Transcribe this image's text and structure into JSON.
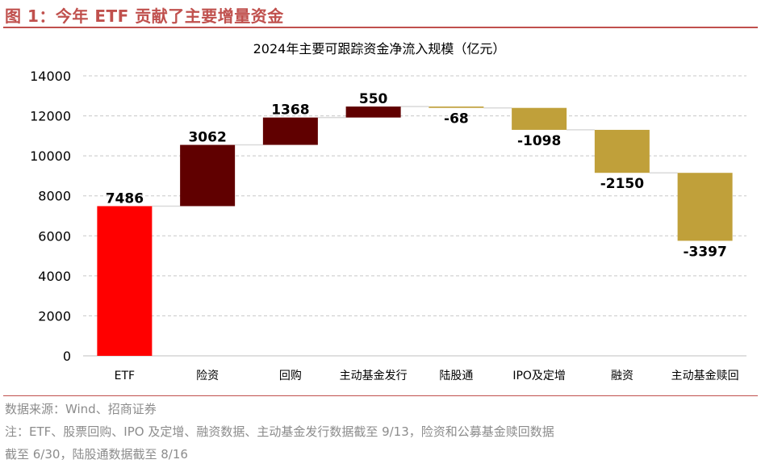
{
  "figure": {
    "title": "图 1：今年 ETF 贡献了主要增量资金",
    "source": "数据来源：Wind、招商证券",
    "note_line1": "注：ETF、股票回购、IPO 及定增、融资数据、主动基金发行数据截至 9/13，险资和公募基金赎回数据",
    "note_line2": "截至 6/30，陆股通数据截至 8/16"
  },
  "colors": {
    "accent": "#c0504d",
    "etf": "#ff0000",
    "positive": "#600000",
    "negative": "#c0a03a",
    "grid": "#c8c8c8",
    "connector": "#d9d9d9"
  },
  "chart_data": {
    "type": "waterfall",
    "title": "2024年主要可跟踪资金净流入规模（亿元）",
    "categories": [
      "ETF",
      "险资",
      "回购",
      "主动基金发行",
      "陆股通",
      "IPO及定增",
      "融资",
      "主动基金赎回"
    ],
    "values": [
      7486,
      3062,
      1368,
      550,
      -68,
      -1098,
      -2150,
      -3397
    ],
    "labels": [
      "7486",
      "3062",
      "1368",
      "550",
      "-68",
      "-1098",
      "-2150",
      "-3397"
    ],
    "ylim": [
      0,
      14000
    ],
    "yticks": [
      0,
      2000,
      4000,
      6000,
      8000,
      10000,
      12000,
      14000
    ],
    "grid": true,
    "legend": "none"
  }
}
